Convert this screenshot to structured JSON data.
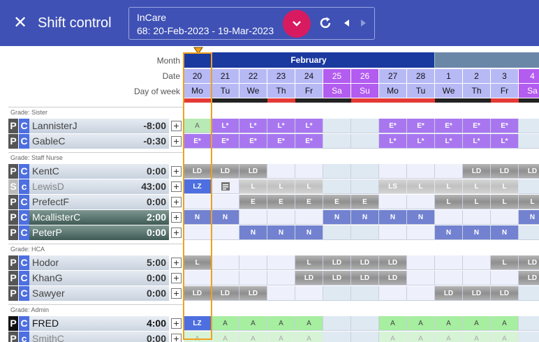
{
  "header": {
    "title": "Shift control",
    "context_name": "InCare",
    "context_range": "68: 20-Feb-2023 - 19-Mar-2023",
    "bg_color": "#3f51b5",
    "accent_color": "#d81b60"
  },
  "grid_labels": {
    "month": "Month",
    "date": "Date",
    "dow": "Day of week"
  },
  "month_label": "February",
  "columns": [
    {
      "date": "20",
      "dow": "Mo",
      "we": false
    },
    {
      "date": "21",
      "dow": "Tu",
      "we": false
    },
    {
      "date": "22",
      "dow": "We",
      "we": false
    },
    {
      "date": "23",
      "dow": "Th",
      "we": false
    },
    {
      "date": "24",
      "dow": "Fr",
      "we": false
    },
    {
      "date": "25",
      "dow": "Sa",
      "we": true
    },
    {
      "date": "26",
      "dow": "Su",
      "we": true
    },
    {
      "date": "27",
      "dow": "Mo",
      "we": false
    },
    {
      "date": "28",
      "dow": "Tu",
      "we": false
    },
    {
      "date": "1",
      "dow": "We",
      "we": false
    },
    {
      "date": "2",
      "dow": "Th",
      "we": false
    },
    {
      "date": "3",
      "dow": "Fr",
      "we": false
    },
    {
      "date": "4",
      "dow": "Sa",
      "we": true
    }
  ],
  "strip": [
    "red",
    "black",
    "black",
    "red",
    "black",
    "black",
    "red",
    "red",
    "red",
    "black",
    "black",
    "red",
    "black"
  ],
  "grades": [
    {
      "label": "Grade: Sister",
      "rows": [
        {
          "p": "P",
          "c": "C",
          "name": "LannisterJ",
          "hours": "-8:00",
          "style": "",
          "cells": [
            [
              "A",
              "a"
            ],
            [
              "L*",
              "purple"
            ],
            [
              "L*",
              "purple"
            ],
            [
              "L*",
              "purple"
            ],
            [
              "L*",
              "purple"
            ],
            [
              "",
              "empty"
            ],
            [
              "",
              "empty"
            ],
            [
              "E*",
              "purple"
            ],
            [
              "E*",
              "purple"
            ],
            [
              "E*",
              "purple"
            ],
            [
              "E*",
              "purple"
            ],
            [
              "E*",
              "purple"
            ],
            [
              "",
              "empty"
            ]
          ]
        },
        {
          "p": "P",
          "c": "C",
          "name": "GableC",
          "hours": "-0:30",
          "style": "",
          "cells": [
            [
              "E*",
              "purple"
            ],
            [
              "E*",
              "purple"
            ],
            [
              "E*",
              "purple"
            ],
            [
              "E*",
              "purple"
            ],
            [
              "E*",
              "purple"
            ],
            [
              "",
              "empty"
            ],
            [
              "",
              "empty"
            ],
            [
              "L*",
              "purple"
            ],
            [
              "L*",
              "purple"
            ],
            [
              "L*",
              "purple"
            ],
            [
              "L*",
              "purple"
            ],
            [
              "L*",
              "purple"
            ],
            [
              "",
              "empty"
            ]
          ]
        }
      ]
    },
    {
      "label": "Grade: Staff Nurse",
      "rows": [
        {
          "p": "P",
          "c": "C",
          "name": "KentC",
          "hours": "0:00",
          "style": "",
          "cells": [
            [
              "LD",
              "grey"
            ],
            [
              "LD",
              "grey"
            ],
            [
              "LD",
              "grey"
            ],
            [
              "",
              "empty"
            ],
            [
              "",
              "empty"
            ],
            [
              "",
              "empty"
            ],
            [
              "",
              "empty"
            ],
            [
              "",
              "empty"
            ],
            [
              "",
              "empty"
            ],
            [
              "",
              "empty"
            ],
            [
              "LD",
              "grey"
            ],
            [
              "LD",
              "grey"
            ],
            [
              "LD",
              "grey"
            ]
          ]
        },
        {
          "p": "S",
          "c": "c",
          "name": "LewisD",
          "hours": "43:00",
          "style": "",
          "dim": true,
          "cells": [
            [
              "LZ",
              "lz"
            ],
            [
              "NOTE",
              "note"
            ],
            [
              "L",
              "grey"
            ],
            [
              "L",
              "grey"
            ],
            [
              "L",
              "grey"
            ],
            [
              "",
              "empty"
            ],
            [
              "",
              "empty"
            ],
            [
              "LS",
              "grey"
            ],
            [
              "L",
              "grey"
            ],
            [
              "L",
              "grey"
            ],
            [
              "L",
              "grey"
            ],
            [
              "L",
              "grey"
            ],
            [
              "",
              "empty"
            ]
          ]
        },
        {
          "p": "P",
          "c": "C",
          "name": "PrefectF",
          "hours": "0:00",
          "style": "",
          "cells": [
            [
              "",
              "empty"
            ],
            [
              "",
              "empty"
            ],
            [
              "E",
              "grey"
            ],
            [
              "E",
              "grey"
            ],
            [
              "E",
              "grey"
            ],
            [
              "E",
              "grey"
            ],
            [
              "E",
              "grey"
            ],
            [
              "",
              "empty"
            ],
            [
              "",
              "empty"
            ],
            [
              "L",
              "grey"
            ],
            [
              "L",
              "grey"
            ],
            [
              "L",
              "grey"
            ],
            [
              "L",
              "grey"
            ]
          ]
        },
        {
          "p": "P",
          "c": "C",
          "name": "McallisterC",
          "hours": "2:00",
          "style": "dark",
          "cells": [
            [
              "N",
              "blue"
            ],
            [
              "N",
              "blue"
            ],
            [
              "",
              "empty"
            ],
            [
              "",
              "empty"
            ],
            [
              "",
              "empty"
            ],
            [
              "N",
              "blue"
            ],
            [
              "N",
              "blue"
            ],
            [
              "N",
              "blue"
            ],
            [
              "N",
              "blue"
            ],
            [
              "",
              "empty"
            ],
            [
              "",
              "empty"
            ],
            [
              "",
              "empty"
            ],
            [
              "N",
              "blue"
            ]
          ]
        },
        {
          "p": "P",
          "c": "C",
          "name": "PeterP",
          "hours": "0:00",
          "style": "dark",
          "cells": [
            [
              "",
              "empty"
            ],
            [
              "",
              "empty"
            ],
            [
              "N",
              "blue"
            ],
            [
              "N",
              "blue"
            ],
            [
              "N",
              "blue"
            ],
            [
              "",
              "empty"
            ],
            [
              "",
              "empty"
            ],
            [
              "",
              "empty"
            ],
            [
              "",
              "empty"
            ],
            [
              "N",
              "blue"
            ],
            [
              "N",
              "blue"
            ],
            [
              "N",
              "blue"
            ],
            [
              "",
              "empty"
            ]
          ]
        }
      ]
    },
    {
      "label": "Grade: HCA",
      "rows": [
        {
          "p": "P",
          "c": "C",
          "name": "Hodor",
          "hours": "5:00",
          "style": "",
          "cells": [
            [
              "L",
              "grey"
            ],
            [
              "",
              "empty"
            ],
            [
              "",
              "empty"
            ],
            [
              "",
              "empty"
            ],
            [
              "L",
              "grey"
            ],
            [
              "LD",
              "grey"
            ],
            [
              "LD",
              "grey"
            ],
            [
              "LD",
              "grey"
            ],
            [
              "",
              "empty"
            ],
            [
              "",
              "empty"
            ],
            [
              "",
              "empty"
            ],
            [
              "L",
              "grey"
            ],
            [
              "LD",
              "grey"
            ]
          ]
        },
        {
          "p": "P",
          "c": "C",
          "name": "KhanG",
          "hours": "0:00",
          "style": "",
          "cells": [
            [
              "",
              "empty"
            ],
            [
              "",
              "empty"
            ],
            [
              "",
              "empty"
            ],
            [
              "",
              "empty"
            ],
            [
              "LD",
              "grey"
            ],
            [
              "LD",
              "grey"
            ],
            [
              "LD",
              "grey"
            ],
            [
              "LD",
              "grey"
            ],
            [
              "",
              "empty"
            ],
            [
              "",
              "empty"
            ],
            [
              "",
              "empty"
            ],
            [
              "",
              "empty"
            ],
            [
              "LD",
              "grey"
            ]
          ]
        },
        {
          "p": "P",
          "c": "C",
          "name": "Sawyer",
          "hours": "0:00",
          "style": "",
          "cells": [
            [
              "LD",
              "grey"
            ],
            [
              "LD",
              "grey"
            ],
            [
              "LD",
              "grey"
            ],
            [
              "",
              "empty"
            ],
            [
              "",
              "empty"
            ],
            [
              "",
              "empty"
            ],
            [
              "",
              "empty"
            ],
            [
              "",
              "empty"
            ],
            [
              "",
              "empty"
            ],
            [
              "LD",
              "grey"
            ],
            [
              "LD",
              "grey"
            ],
            [
              "LD",
              "grey"
            ],
            [
              "",
              "empty"
            ]
          ]
        }
      ]
    },
    {
      "label": "Grade: Admin",
      "rows": [
        {
          "p": "P",
          "c": "C",
          "name": "FRED",
          "hours": "4:00",
          "style": "light",
          "pdark": true,
          "cells": [
            [
              "LZ",
              "lz"
            ],
            [
              "A",
              "green"
            ],
            [
              "A",
              "green"
            ],
            [
              "A",
              "green"
            ],
            [
              "A",
              "green"
            ],
            [
              "",
              "empty"
            ],
            [
              "",
              "empty"
            ],
            [
              "A",
              "green"
            ],
            [
              "A",
              "green"
            ],
            [
              "A",
              "green"
            ],
            [
              "A",
              "green"
            ],
            [
              "A",
              "green"
            ],
            [
              "",
              "empty"
            ]
          ]
        },
        {
          "p": "P",
          "c": "c",
          "name": "SmithC",
          "hours": "0:00",
          "style": "",
          "dim": true,
          "cells": [
            [
              "A",
              "a"
            ],
            [
              "A",
              "a"
            ],
            [
              "A",
              "a"
            ],
            [
              "A",
              "a"
            ],
            [
              "A",
              "a"
            ],
            [
              "",
              "empty"
            ],
            [
              "",
              "empty"
            ],
            [
              "A",
              "a"
            ],
            [
              "A",
              "a"
            ],
            [
              "A",
              "a"
            ],
            [
              "A",
              "a"
            ],
            [
              "A",
              "a"
            ],
            [
              "",
              "empty"
            ]
          ]
        }
      ]
    }
  ]
}
